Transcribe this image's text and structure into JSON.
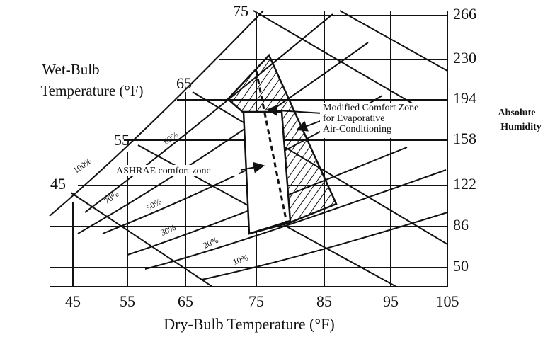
{
  "left_label": [
    "Wet-Bulb",
    "Temperature (°F)"
  ],
  "wet_bulb_labels": [
    "75",
    "65",
    "55",
    "45"
  ],
  "rh_labels": [
    "100%",
    "80%",
    "70%",
    "50%",
    "30%",
    "20%",
    "10%"
  ],
  "annotations": {
    "modified": [
      "Modified Comfort Zone",
      "for Evaporative",
      "Air-Conditioning"
    ],
    "ashrae": "ASHRAE comfort zone"
  },
  "right_label": [
    "Absolute",
    "Humidity"
  ],
  "right_ticks": [
    "266",
    "230",
    "194",
    "158",
    "122",
    "86",
    "50"
  ],
  "x_ticks": [
    "45",
    "55",
    "65",
    "75",
    "85",
    "95",
    "105"
  ],
  "x_label": "Dry-Bulb Temperature (°F)"
}
